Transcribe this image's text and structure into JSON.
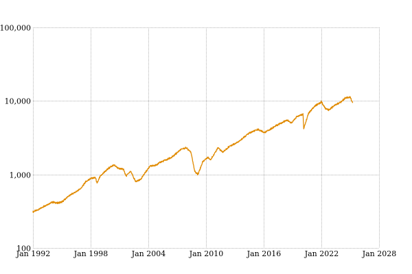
{
  "chart_data": {
    "type": "line",
    "title": "",
    "xlabel": "",
    "ylabel": "",
    "y_scale": "log",
    "ylim": [
      100,
      100000
    ],
    "xlim": [
      "1992-01",
      "2028-01"
    ],
    "grid": true,
    "legend": "none",
    "x_ticks": [
      "Jan 1992",
      "Jan 1998",
      "Jan 2004",
      "Jan 2010",
      "Jan 2016",
      "Jan 2022",
      "Jan 2028"
    ],
    "y_ticks": [
      "100",
      "1,000",
      "10,000",
      "100,000"
    ],
    "x_tick_values": [
      "1992-01",
      "1998-01",
      "2004-01",
      "2010-01",
      "2016-01",
      "2022-01",
      "2028-01"
    ],
    "y_tick_values": [
      100,
      1000,
      10000,
      100000
    ],
    "series": [
      {
        "color": "#e08a00",
        "points": [
          [
            "1992-01",
            310
          ],
          [
            "1992-07",
            330
          ],
          [
            "1993-01",
            360
          ],
          [
            "1993-07",
            390
          ],
          [
            "1994-01",
            420
          ],
          [
            "1994-07",
            410
          ],
          [
            "1995-01",
            420
          ],
          [
            "1995-07",
            480
          ],
          [
            "1996-01",
            540
          ],
          [
            "1996-07",
            580
          ],
          [
            "1997-01",
            650
          ],
          [
            "1997-07",
            800
          ],
          [
            "1998-01",
            880
          ],
          [
            "1998-07",
            910
          ],
          [
            "1998-09",
            760
          ],
          [
            "1999-01",
            940
          ],
          [
            "1999-07",
            1100
          ],
          [
            "2000-01",
            1250
          ],
          [
            "2000-06",
            1350
          ],
          [
            "2000-12",
            1200
          ],
          [
            "2001-06",
            1180
          ],
          [
            "2001-09",
            950
          ],
          [
            "2002-03",
            1100
          ],
          [
            "2002-09",
            800
          ],
          [
            "2003-03",
            850
          ],
          [
            "2003-09",
            1050
          ],
          [
            "2004-03",
            1300
          ],
          [
            "2004-09",
            1320
          ],
          [
            "2005-06",
            1500
          ],
          [
            "2006-06",
            1700
          ],
          [
            "2007-06",
            2200
          ],
          [
            "2007-12",
            2300
          ],
          [
            "2008-06",
            2050
          ],
          [
            "2008-11",
            1100
          ],
          [
            "2009-03",
            1000
          ],
          [
            "2009-09",
            1500
          ],
          [
            "2010-03",
            1700
          ],
          [
            "2010-07",
            1600
          ],
          [
            "2011-04",
            2300
          ],
          [
            "2011-10",
            2000
          ],
          [
            "2012-06",
            2400
          ],
          [
            "2013-06",
            2800
          ],
          [
            "2014-06",
            3600
          ],
          [
            "2015-06",
            4100
          ],
          [
            "2016-02",
            3700
          ],
          [
            "2016-09",
            4100
          ],
          [
            "2017-06",
            4700
          ],
          [
            "2018-06",
            5500
          ],
          [
            "2018-12",
            5000
          ],
          [
            "2019-06",
            6100
          ],
          [
            "2020-02",
            6600
          ],
          [
            "2020-03",
            4200
          ],
          [
            "2020-09",
            6800
          ],
          [
            "2021-06",
            8700
          ],
          [
            "2022-01",
            9700
          ],
          [
            "2022-06",
            7900
          ],
          [
            "2022-10",
            7500
          ],
          [
            "2023-06",
            8800
          ],
          [
            "2024-01",
            9600
          ],
          [
            "2024-07",
            11000
          ],
          [
            "2025-01",
            11200
          ],
          [
            "2025-04",
            9500
          ]
        ]
      }
    ]
  }
}
